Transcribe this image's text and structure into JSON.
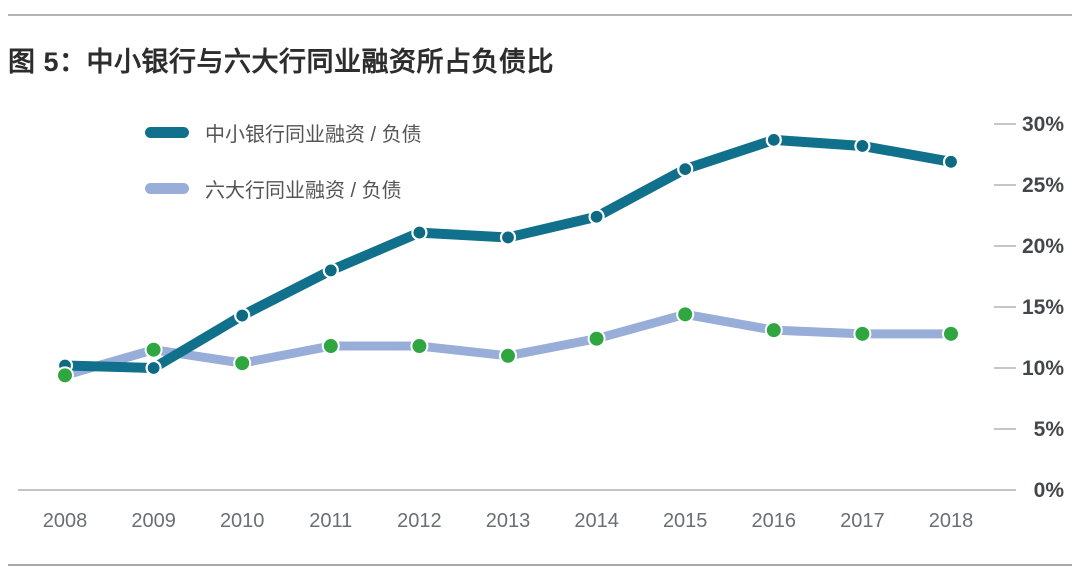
{
  "chart_data": {
    "type": "line",
    "title": "图 5：中小银行与六大行同业融资所占负债比",
    "categories": [
      "2008",
      "2009",
      "2010",
      "2011",
      "2012",
      "2013",
      "2014",
      "2015",
      "2016",
      "2017",
      "2018"
    ],
    "series": [
      {
        "name": "中小银行同业融资 / 负债",
        "color": "#11708b",
        "marker_color": "#0e6983",
        "values": [
          10.2,
          10.0,
          14.3,
          18.0,
          21.1,
          20.7,
          22.4,
          26.3,
          28.7,
          28.2,
          26.9
        ]
      },
      {
        "name": "六大行同业融资 / 负债",
        "color": "#98add8",
        "marker_color": "#2fa63f",
        "values": [
          9.4,
          11.5,
          10.4,
          11.8,
          11.8,
          11.0,
          12.4,
          14.4,
          13.1,
          12.8,
          12.8
        ]
      }
    ],
    "yticks": [
      "0%",
      "5%",
      "10%",
      "15%",
      "20%",
      "25%",
      "30%"
    ],
    "ylim": [
      0,
      30
    ],
    "ylabel": "",
    "xlabel": "",
    "grid": false,
    "legend_position": "top-left",
    "colors": {
      "axis_tick": "#c6c6c6",
      "baseline": "#b0b0b0",
      "y_label_text": "#43474c",
      "x_label_text": "#6b6f73",
      "title_text": "#2d2d2d",
      "divider": "#b3b3b3"
    }
  }
}
